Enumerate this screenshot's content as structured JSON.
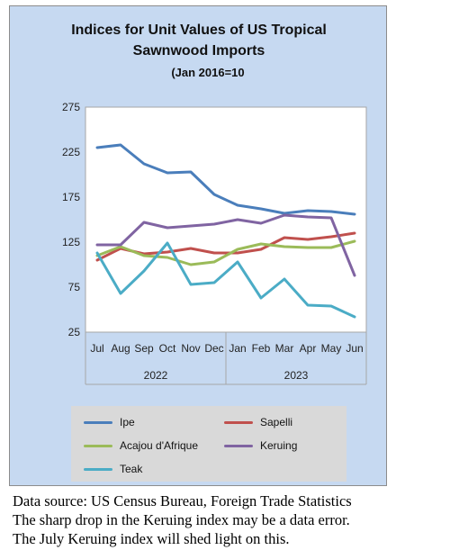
{
  "chart_data": {
    "type": "line",
    "title_line1": "Indices for Unit Values of US Tropical",
    "title_line2": "Sawnwood Imports",
    "subtitle": "(Jan 2016=10",
    "categories": [
      "Jul",
      "Aug",
      "Sep",
      "Oct",
      "Nov",
      "Dec",
      "Jan",
      "Feb",
      "Mar",
      "Apr",
      "May",
      "Jun"
    ],
    "years": [
      {
        "label": "2022",
        "from": 0,
        "to": 5
      },
      {
        "label": "2023",
        "from": 6,
        "to": 11
      }
    ],
    "ylim": [
      25,
      275
    ],
    "yticks": [
      25,
      75,
      125,
      175,
      225,
      275
    ],
    "grid": false,
    "legend_position": "bottom",
    "series": [
      {
        "name": "Ipe",
        "color": "#4a7ebb",
        "values": [
          230,
          233,
          212,
          202,
          203,
          178,
          166,
          162,
          157,
          160,
          159,
          156
        ]
      },
      {
        "name": "Sapelli",
        "color": "#c0504d",
        "values": [
          105,
          118,
          112,
          114,
          118,
          113,
          113,
          117,
          130,
          128,
          131,
          135
        ]
      },
      {
        "name": "Acajou d'Afrique",
        "color": "#9bbb59",
        "values": [
          110,
          120,
          110,
          108,
          100,
          103,
          117,
          123,
          120,
          119,
          119,
          126
        ]
      },
      {
        "name": "Keruing",
        "color": "#8064a2",
        "values": [
          122,
          122,
          147,
          141,
          143,
          145,
          150,
          146,
          155,
          153,
          152,
          88
        ]
      },
      {
        "name": "Teak",
        "color": "#4bacc6",
        "values": [
          113,
          68,
          93,
          124,
          78,
          80,
          103,
          63,
          84,
          55,
          54,
          42
        ]
      }
    ]
  },
  "footnote": {
    "line1": "Data source: US Census Bureau, Foreign Trade Statistics",
    "line2": "The sharp drop in the Keruing index may be a data error.",
    "line3": "The July Keruing index will shed light on this."
  }
}
